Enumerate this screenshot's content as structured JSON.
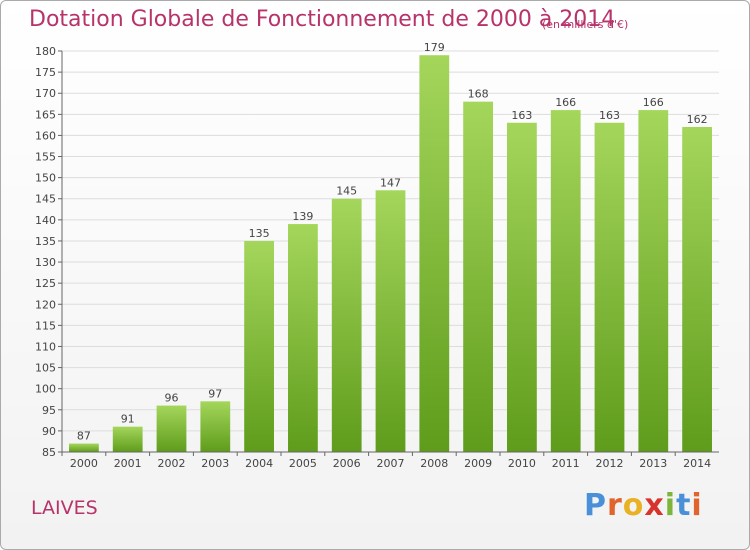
{
  "header": {
    "title": "Dotation Globale de Fonctionnement de 2000 à 2014",
    "subtitle": "(en milliers d'€)"
  },
  "footer": {
    "commune": "LAIVES",
    "logo_text": "Proxiti"
  },
  "colors": {
    "title": "#b7336a",
    "bar_top": "#a4d65b",
    "bar_bottom": "#5f9c1c",
    "grid": "#dddddd",
    "axis": "#666666"
  },
  "chart_data": {
    "type": "bar",
    "title": "Dotation Globale de Fonctionnement de 2000 à 2014",
    "subtitle": "(en milliers d'€)",
    "xlabel": "",
    "ylabel": "",
    "categories": [
      "2000",
      "2001",
      "2002",
      "2003",
      "2004",
      "2005",
      "2006",
      "2007",
      "2008",
      "2009",
      "2010",
      "2011",
      "2012",
      "2013",
      "2014"
    ],
    "values": [
      87,
      91,
      96,
      97,
      135,
      139,
      145,
      147,
      179,
      168,
      163,
      166,
      163,
      166,
      162
    ],
    "ylim": [
      85,
      180
    ],
    "ytick_step": 5,
    "grid": true,
    "legend": "none"
  }
}
